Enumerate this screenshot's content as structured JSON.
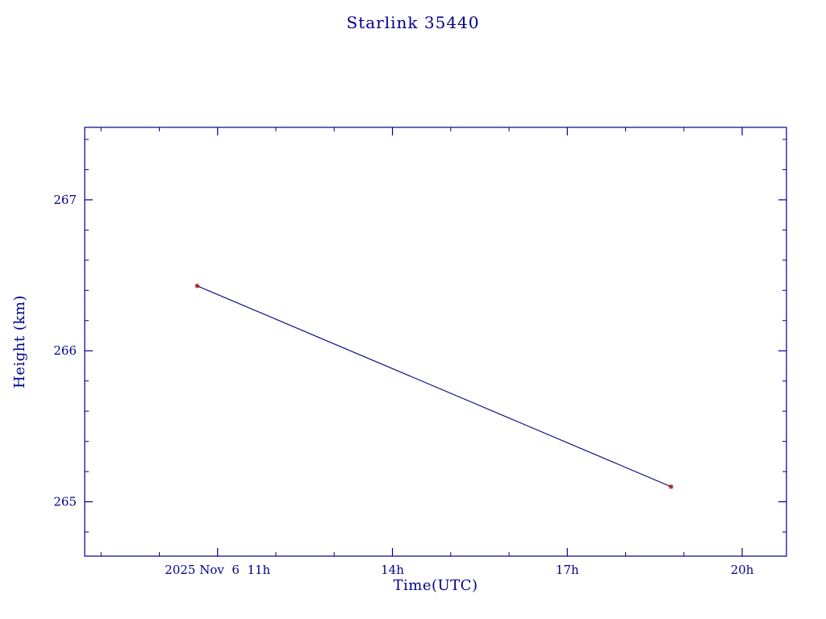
{
  "chart_data": {
    "type": "line",
    "title": "Starlink 35440",
    "xlabel": "Time(UTC)",
    "ylabel": "Height (km)",
    "x_unit": "hours UTC on 2025 Nov 6",
    "xlim": [
      8.72,
      20.76
    ],
    "ylim": [
      264.64,
      267.48
    ],
    "grid": false,
    "legend": "none",
    "x_ticks": [
      {
        "value": 11,
        "label": "2025 Nov  6  11h"
      },
      {
        "value": 14,
        "label": "14h"
      },
      {
        "value": 17,
        "label": "17h"
      },
      {
        "value": 20,
        "label": "20h"
      }
    ],
    "x_minor_tick_step_hours": 1,
    "y_ticks": [
      {
        "value": 265,
        "label": "265"
      },
      {
        "value": 266,
        "label": "266"
      },
      {
        "value": 267,
        "label": "267"
      }
    ],
    "y_minor_tick_step": 0.2,
    "series": [
      {
        "name": "height",
        "x": [
          10.65,
          18.78
        ],
        "y": [
          266.43,
          265.1
        ],
        "marker": "asterisk"
      }
    ],
    "colors": {
      "axis": "#00008b",
      "text": "#00008b",
      "line": "#000080",
      "marker": "#aa2222",
      "background": "#ffffff"
    }
  }
}
